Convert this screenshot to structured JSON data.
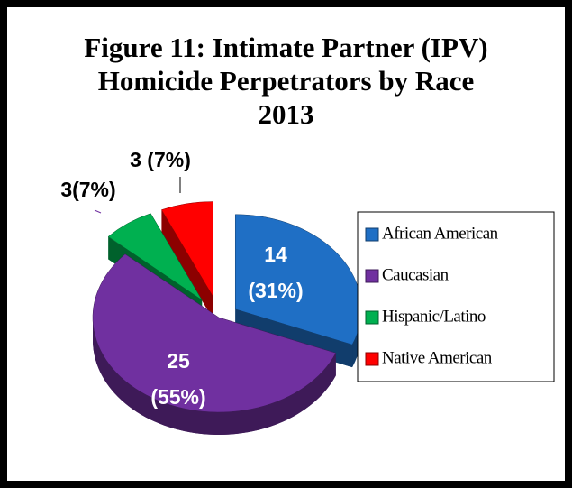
{
  "chart_data": {
    "type": "pie",
    "title": "Figure 11: Intimate Partner (IPV) Homicide Perpetrators by Race 2013",
    "categories": [
      "African American",
      "Caucasian",
      "Hispanic/Latino",
      "Native American"
    ],
    "values": [
      14,
      25,
      3,
      3
    ],
    "value_labels": [
      "14\n(31%)",
      "25\n(55%)",
      "3(7%)",
      "3 (7%)"
    ],
    "colors": [
      "#1f6fc5",
      "#7030a0",
      "#00b050",
      "#ff0000"
    ],
    "legend": "right"
  }
}
